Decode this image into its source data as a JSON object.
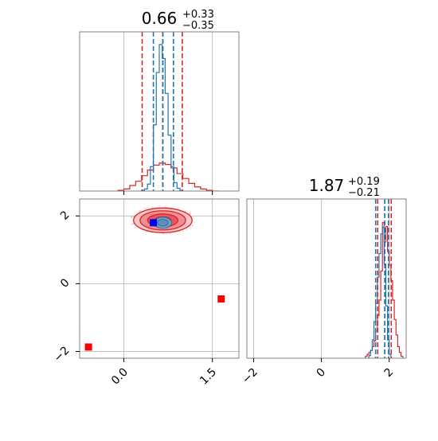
{
  "chart_data": {
    "type": "corner",
    "colors": {
      "red": "#d62728",
      "blue": "#1f77b4",
      "red_marker": "#ff0000",
      "blue_marker": "#0000ff",
      "grid": "#b0b0b0",
      "frame": "#808080"
    },
    "param1": {
      "title_value": "0.66",
      "title_plus": "+0.33",
      "title_minus": "−0.35",
      "xlim": [
        -0.75,
        1.95
      ],
      "ticks": [
        0.0,
        1.5
      ],
      "tick_labels": [
        "0.0",
        "1.5"
      ],
      "red_quantiles": [
        0.31,
        0.66,
        0.99
      ],
      "blue_quantiles": [
        0.5,
        0.66,
        0.84
      ],
      "red_hist": {
        "edges": [
          -0.1,
          0.0,
          0.1,
          0.2,
          0.3,
          0.4,
          0.5,
          0.6,
          0.7,
          0.8,
          0.9,
          1.0,
          1.1,
          1.2,
          1.3,
          1.4,
          1.5,
          1.6
        ],
        "counts": [
          1,
          3,
          8,
          14,
          22,
          30,
          37,
          40,
          38,
          33,
          25,
          18,
          11,
          6,
          3,
          1,
          0
        ]
      },
      "blue_hist": {
        "edges": [
          0.3,
          0.35,
          0.4,
          0.45,
          0.5,
          0.55,
          0.6,
          0.65,
          0.7,
          0.75,
          0.8,
          0.85,
          0.9,
          0.95,
          1.0
        ],
        "counts": [
          1,
          3,
          10,
          35,
          95,
          170,
          210,
          190,
          140,
          80,
          35,
          12,
          4,
          1
        ]
      }
    },
    "param2": {
      "title_value": "1.87",
      "title_plus": "+0.19",
      "title_minus": "−0.21",
      "xlim": [
        -2.2,
        2.5
      ],
      "ticks": [
        -2,
        0,
        2
      ],
      "tick_labels": [
        "−2",
        "0",
        "2"
      ],
      "red_quantiles": [
        1.66,
        1.87,
        2.06
      ],
      "blue_quantiles": [
        1.6,
        1.87,
        1.98
      ],
      "red_hist": {
        "edges": [
          1.3,
          1.35,
          1.4,
          1.45,
          1.5,
          1.55,
          1.6,
          1.65,
          1.7,
          1.75,
          1.8,
          1.85,
          1.9,
          1.95,
          2.0,
          2.05,
          2.1,
          2.15,
          2.2,
          2.25,
          2.3,
          2.35,
          2.4
        ],
        "counts": [
          1,
          2,
          3,
          4,
          6,
          9,
          14,
          22,
          30,
          45,
          70,
          60,
          68,
          55,
          48,
          40,
          30,
          20,
          12,
          6,
          3,
          1
        ]
      },
      "blue_hist": {
        "edges": [
          1.4,
          1.45,
          1.5,
          1.55,
          1.6,
          1.65,
          1.7,
          1.75,
          1.8,
          1.85,
          1.9,
          1.95,
          2.0,
          2.05
        ],
        "counts": [
          2,
          6,
          14,
          28,
          42,
          62,
          80,
          95,
          100,
          72,
          40,
          14,
          3
        ]
      }
    },
    "joint": {
      "xlim": [
        -0.75,
        1.95
      ],
      "ylim": [
        -2.2,
        2.5
      ],
      "y_ticks": [
        -2,
        0,
        2
      ],
      "y_tick_labels": [
        "−2",
        "0",
        "2"
      ],
      "red_center": [
        0.66,
        1.87
      ],
      "red_sigma": [
        0.35,
        0.2
      ],
      "blue_center": [
        0.66,
        1.8
      ],
      "blue_sigma": [
        0.15,
        0.15
      ],
      "red_markers": [
        [
          -0.6,
          -1.87
        ],
        [
          1.65,
          -0.45
        ]
      ],
      "blue_markers": [
        [
          0.5,
          1.8
        ]
      ]
    }
  }
}
